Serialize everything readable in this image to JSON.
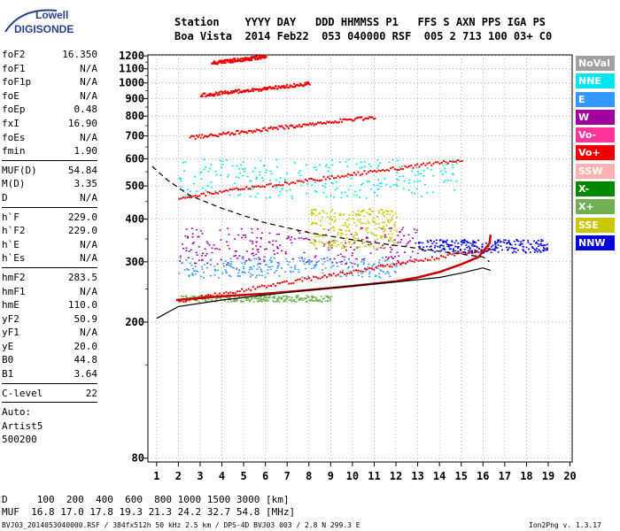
{
  "logo": {
    "line1": "Lowell",
    "line2": "DIGISONDE"
  },
  "header": {
    "labels": "Station    YYYY DAY   DDD HHMMSS P1   FFS S AXN PPS IGA PS",
    "values": "Boa Vista  2014 Feb22  053 040000 RSF  005 2 713 100 03+ C0"
  },
  "params": {
    "group1": [
      {
        "label": "foF2",
        "value": "16.350"
      },
      {
        "label": "foF1",
        "value": "N/A"
      },
      {
        "label": "foF1p",
        "value": "N/A"
      },
      {
        "label": "foE",
        "value": "N/A"
      },
      {
        "label": "foEp",
        "value": "0.48"
      },
      {
        "label": "fxI",
        "value": "16.90"
      },
      {
        "label": "foEs",
        "value": "N/A"
      },
      {
        "label": "fmin",
        "value": "1.90"
      }
    ],
    "group2": [
      {
        "label": "MUF(D)",
        "value": "54.84"
      },
      {
        "label": "M(D)",
        "value": "3.35"
      },
      {
        "label": "D",
        "value": "N/A"
      }
    ],
    "group3": [
      {
        "label": "h`F",
        "value": "229.0"
      },
      {
        "label": "h`F2",
        "value": "229.0"
      },
      {
        "label": "h`E",
        "value": "N/A"
      },
      {
        "label": "h`Es",
        "value": "N/A"
      }
    ],
    "group4": [
      {
        "label": "hmF2",
        "value": "283.5"
      },
      {
        "label": "hmF1",
        "value": "N/A"
      },
      {
        "label": "hmE",
        "value": "110.0"
      },
      {
        "label": "yF2",
        "value": "50.9"
      },
      {
        "label": "yF1",
        "value": "N/A"
      },
      {
        "label": "yE",
        "value": "20.0"
      },
      {
        "label": "B0",
        "value": "44.8"
      },
      {
        "label": "B1",
        "value": "3.64"
      }
    ],
    "clevel": {
      "label": "C-level",
      "value": "22"
    },
    "auto_label": "Auto:",
    "artist": "Artist5",
    "code": "500200"
  },
  "legend": [
    {
      "label": "NoVal",
      "color": "#a0a0a0"
    },
    {
      "label": "NNE",
      "color": "#00e5ee"
    },
    {
      "label": "E",
      "color": "#3399ff"
    },
    {
      "label": "W",
      "color": "#a000a0"
    },
    {
      "label": "Vo-",
      "color": "#ff3399"
    },
    {
      "label": "Vo+",
      "color": "#ee0000"
    },
    {
      "label": "SSW",
      "color": "#ffb0b0"
    },
    {
      "label": "X-",
      "color": "#008800"
    },
    {
      "label": "X+",
      "color": "#70b050"
    },
    {
      "label": "SSE",
      "color": "#c8c800"
    },
    {
      "label": "NNW",
      "color": "#0000dd"
    }
  ],
  "muf_table": {
    "distance_row": "D     100  200  400  600  800 1000 1500 3000 [km]",
    "muf_row": "MUF  16.8 17.0 17.8 19.3 21.3 24.2 32.7 54.8 [MHz]"
  },
  "footer": {
    "left": "BVJ03_2014053040000.RSF / 384fx512h 50 kHz 2.5 km / DPS-4D BVJ03 003 / 2.8 N 299.3 E",
    "right": "Ion2Png v. 1.3.17"
  },
  "chart_data": {
    "type": "scatter",
    "x_ticks": [
      1,
      2,
      3,
      4,
      5,
      6,
      7,
      8,
      9,
      10,
      11,
      12,
      13,
      14,
      15,
      16,
      17,
      18,
      19,
      20
    ],
    "y_ticks": [
      80,
      200,
      300,
      400,
      500,
      600,
      700,
      800,
      900,
      1000,
      1100,
      1200
    ],
    "xlim": [
      0.6,
      20.1
    ],
    "ylim": [
      78,
      1208
    ],
    "y_scale": "log",
    "profile_curve": [
      [
        1,
        205
      ],
      [
        2,
        222
      ],
      [
        4,
        232
      ],
      [
        6,
        240
      ],
      [
        8,
        248
      ],
      [
        10,
        255
      ],
      [
        12,
        262
      ],
      [
        14,
        270
      ],
      [
        15,
        278
      ],
      [
        16,
        288
      ],
      [
        16.35,
        283
      ]
    ],
    "virtual_height_trace": [
      [
        1.9,
        232
      ],
      [
        4,
        238
      ],
      [
        6,
        242
      ],
      [
        8,
        248
      ],
      [
        10,
        255
      ],
      [
        12,
        263
      ],
      [
        13,
        270
      ],
      [
        14,
        280
      ],
      [
        15,
        295
      ],
      [
        15.8,
        310
      ],
      [
        16.3,
        340
      ],
      [
        16.35,
        360
      ]
    ],
    "dashed_curve": [
      [
        0.8,
        570
      ],
      [
        1.5,
        520
      ],
      [
        2.5,
        470
      ],
      [
        4,
        430
      ],
      [
        6,
        390
      ],
      [
        8,
        365
      ],
      [
        10,
        348
      ],
      [
        12,
        335
      ],
      [
        14,
        322
      ],
      [
        16,
        310
      ],
      [
        16.3,
        300
      ]
    ],
    "echo_traces": [
      {
        "series": "Vo+",
        "points": [
          [
            2,
            232
          ],
          [
            16.3,
            330
          ]
        ],
        "band": [
          232,
          340
        ]
      },
      {
        "series": "Vo+",
        "points": [
          [
            2,
            465
          ],
          [
            15,
            600
          ]
        ]
      },
      {
        "series": "Vo+",
        "points": [
          [
            2.5,
            695
          ],
          [
            11,
            800
          ]
        ]
      },
      {
        "series": "Vo+",
        "points": [
          [
            3,
            925
          ],
          [
            8,
            1000
          ]
        ]
      },
      {
        "series": "Vo+",
        "points": [
          [
            3.5,
            1150
          ],
          [
            6,
            1200
          ]
        ]
      }
    ],
    "clouds": [
      {
        "series": "W",
        "x": [
          2,
          13
        ],
        "y": [
          295,
          380
        ]
      },
      {
        "series": "NNW",
        "x": [
          13,
          19
        ],
        "y": [
          320,
          350
        ]
      },
      {
        "series": "SSE",
        "x": [
          8,
          12
        ],
        "y": [
          330,
          430
        ]
      },
      {
        "series": "NNE",
        "x": [
          2,
          15
        ],
        "y": [
          460,
          600
        ]
      },
      {
        "series": "E",
        "x": [
          2,
          12
        ],
        "y": [
          270,
          310
        ]
      },
      {
        "series": "X+",
        "x": [
          2,
          9
        ],
        "y": [
          230,
          240
        ]
      }
    ]
  }
}
